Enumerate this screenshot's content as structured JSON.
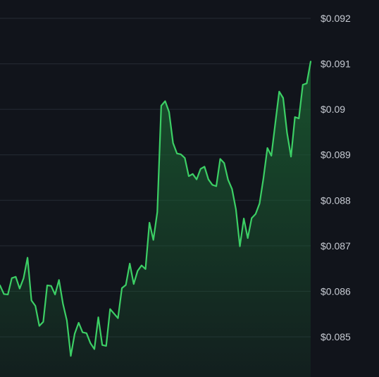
{
  "chart_data": {
    "type": "area",
    "title": "",
    "xlabel": "",
    "ylabel": "",
    "ylim": [
      0.08448,
      0.09258
    ],
    "grid": true,
    "y_axis_position": "right",
    "y_ticks": [
      {
        "value": 0.092,
        "label": "$0.092"
      },
      {
        "value": 0.091,
        "label": "$0.091"
      },
      {
        "value": 0.09,
        "label": "$0.09"
      },
      {
        "value": 0.089,
        "label": "$0.089"
      },
      {
        "value": 0.088,
        "label": "$0.088"
      },
      {
        "value": 0.087,
        "label": "$0.087"
      },
      {
        "value": 0.086,
        "label": "$0.086"
      },
      {
        "value": 0.085,
        "label": "$0.085"
      }
    ],
    "colors": {
      "line": "#3ccf65",
      "fill": "#1a5c31",
      "background": "#11141b",
      "grid": "#262b35",
      "text": "#c7cbd3"
    },
    "series": [
      {
        "values": [
          0.08613,
          0.08594,
          0.08593,
          0.08629,
          0.08632,
          0.08606,
          0.08629,
          0.08674,
          0.0858,
          0.08568,
          0.08524,
          0.08533,
          0.08613,
          0.08612,
          0.08593,
          0.08625,
          0.08573,
          0.08536,
          0.08458,
          0.08507,
          0.08531,
          0.0851,
          0.08508,
          0.08486,
          0.08473,
          0.08543,
          0.08482,
          0.0848,
          0.08561,
          0.08551,
          0.08541,
          0.08607,
          0.08614,
          0.08661,
          0.08616,
          0.08645,
          0.08657,
          0.08649,
          0.08751,
          0.08713,
          0.08774,
          0.09008,
          0.09018,
          0.08994,
          0.08926,
          0.08903,
          0.08901,
          0.08893,
          0.08853,
          0.08858,
          0.08846,
          0.08869,
          0.08874,
          0.08846,
          0.08834,
          0.08831,
          0.08891,
          0.08882,
          0.08845,
          0.08825,
          0.0878,
          0.08699,
          0.0876,
          0.08717,
          0.08761,
          0.0877,
          0.08793,
          0.08849,
          0.08915,
          0.08898,
          0.08969,
          0.09039,
          0.09025,
          0.08948,
          0.08896,
          0.08983,
          0.0898,
          0.09054,
          0.09057,
          0.09105
        ]
      }
    ]
  }
}
